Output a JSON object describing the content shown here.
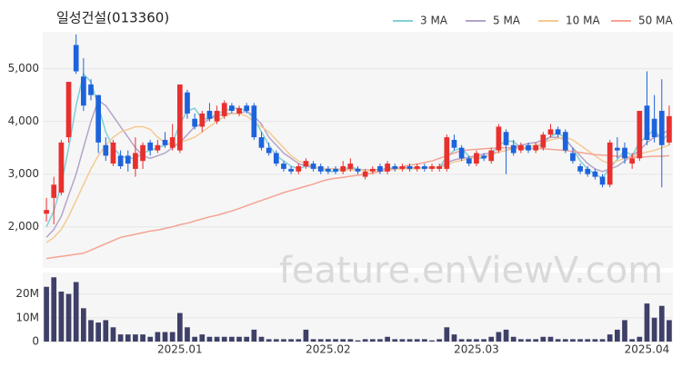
{
  "chart_data": {
    "type": "candlestick",
    "title": "일성건설(013360)",
    "watermark": "feature.enViewV.com",
    "up_color": "#e8302e",
    "down_color": "#1d63dc",
    "categories": [
      null,
      null,
      null,
      null,
      null,
      null,
      null,
      null,
      null,
      null,
      null,
      null,
      null,
      null,
      null,
      null,
      null,
      null,
      "2025.01",
      null,
      null,
      null,
      null,
      null,
      null,
      null,
      null,
      null,
      null,
      null,
      null,
      null,
      null,
      null,
      null,
      null,
      null,
      null,
      "2025.02",
      null,
      null,
      null,
      null,
      null,
      null,
      null,
      null,
      null,
      null,
      null,
      null,
      null,
      null,
      null,
      null,
      null,
      null,
      null,
      "2025.03",
      null,
      null,
      null,
      null,
      null,
      null,
      null,
      null,
      null,
      null,
      null,
      null,
      null,
      null,
      null,
      null,
      null,
      null,
      null,
      null,
      null,
      null,
      "2025.04",
      null,
      null,
      null
    ],
    "open": [
      2250,
      2550,
      2650,
      3700,
      5450,
      4850,
      4700,
      4500,
      3550,
      3200,
      3350,
      3350,
      3100,
      3250,
      3600,
      3450,
      3650,
      3500,
      3450,
      4550,
      4050,
      3900,
      4200,
      4000,
      4100,
      4300,
      4150,
      4300,
      4300,
      3700,
      3500,
      3400,
      3200,
      3100,
      3050,
      3150,
      3200,
      3150,
      3100,
      3100,
      3050,
      3100,
      3100,
      2950,
      3050,
      3150,
      3050,
      3150,
      3100,
      3150,
      3100,
      3150,
      3100,
      3100,
      3100,
      3650,
      3500,
      3300,
      3200,
      3350,
      3250,
      3450,
      3800,
      3550,
      3450,
      3550,
      3450,
      3500,
      3750,
      3850,
      3800,
      3400,
      3150,
      3100,
      3050,
      2950,
      2800,
      3500,
      3500,
      3200,
      3300,
      4300,
      4050,
      4200,
      3600
    ],
    "high": [
      2550,
      2950,
      3650,
      4750,
      5650,
      5200,
      4800,
      4500,
      3700,
      3650,
      3450,
      3450,
      3700,
      3600,
      3650,
      3650,
      3800,
      3950,
      4700,
      4600,
      4150,
      4200,
      4350,
      4300,
      4400,
      4350,
      4300,
      4350,
      4350,
      3800,
      3600,
      3450,
      3250,
      3150,
      3200,
      3300,
      3250,
      3200,
      3150,
      3150,
      3250,
      3300,
      3150,
      3100,
      3150,
      3200,
      3250,
      3200,
      3200,
      3200,
      3200,
      3200,
      3200,
      3200,
      3750,
      3750,
      3550,
      3350,
      3450,
      3400,
      3500,
      3950,
      3850,
      3650,
      3600,
      3600,
      3600,
      3800,
      3950,
      3900,
      3850,
      3500,
      3200,
      3150,
      3100,
      3000,
      3650,
      3700,
      3600,
      3400,
      4200,
      4950,
      4500,
      4800,
      4300
    ],
    "low": [
      2100,
      2050,
      2600,
      3600,
      4900,
      4200,
      4400,
      3400,
      3250,
      3150,
      3100,
      3050,
      2950,
      3100,
      3350,
      3400,
      3500,
      3450,
      3400,
      4050,
      3850,
      3800,
      4000,
      3950,
      4050,
      4150,
      4100,
      4150,
      3650,
      3450,
      3350,
      3150,
      3050,
      3000,
      3000,
      3100,
      3050,
      3000,
      3000,
      3000,
      3000,
      3050,
      3000,
      2900,
      3000,
      3000,
      3000,
      3050,
      3050,
      3050,
      3050,
      3050,
      3050,
      3050,
      3050,
      3450,
      3250,
      3150,
      3150,
      3250,
      3200,
      3400,
      3000,
      3350,
      3400,
      3400,
      3400,
      3450,
      3700,
      3700,
      3400,
      3200,
      3000,
      2950,
      2900,
      2750,
      2750,
      3300,
      3200,
      3100,
      3250,
      3550,
      3600,
      2750,
      3550
    ],
    "close": [
      2320,
      2800,
      3600,
      4750,
      4950,
      4300,
      4500,
      3600,
      3350,
      3600,
      3150,
      3200,
      3400,
      3550,
      3450,
      3550,
      3550,
      3700,
      4700,
      4150,
      3900,
      4150,
      4050,
      4200,
      4350,
      4200,
      4250,
      4200,
      3700,
      3500,
      3400,
      3200,
      3100,
      3050,
      3150,
      3250,
      3100,
      3050,
      3050,
      3050,
      3150,
      3200,
      3050,
      3050,
      3100,
      3050,
      3200,
      3100,
      3150,
      3100,
      3150,
      3100,
      3150,
      3150,
      3700,
      3500,
      3300,
      3200,
      3400,
      3300,
      3450,
      3900,
      3550,
      3400,
      3550,
      3450,
      3550,
      3750,
      3850,
      3750,
      3450,
      3250,
      3050,
      3000,
      2950,
      2800,
      3600,
      3450,
      3300,
      3300,
      4200,
      3650,
      3700,
      3550,
      4100
    ],
    "series": [
      {
        "name": "3 MA",
        "color": "#7fd0d6",
        "values": [
          2000,
          2300,
          2800,
          3500,
          4300,
          4900,
          4750,
          4300,
          3800,
          3500,
          3350,
          3300,
          3300,
          3400,
          3450,
          3500,
          3550,
          3600,
          3950,
          4200,
          4250,
          4050,
          4050,
          4150,
          4200,
          4250,
          4250,
          4200,
          4050,
          3800,
          3550,
          3350,
          3250,
          3150,
          3100,
          3150,
          3150,
          3100,
          3050,
          3050,
          3100,
          3130,
          3100,
          3070,
          3070,
          3080,
          3110,
          3120,
          3120,
          3120,
          3120,
          3120,
          3130,
          3130,
          3330,
          3450,
          3500,
          3330,
          3300,
          3300,
          3380,
          3550,
          3630,
          3620,
          3500,
          3470,
          3500,
          3580,
          3720,
          3780,
          3680,
          3480,
          3250,
          3100,
          3000,
          2920,
          3120,
          3280,
          3450,
          3350,
          3600,
          3720,
          3850,
          3630,
          3780
        ]
      },
      {
        "name": "5 MA",
        "color": "#b4a3c9",
        "values": [
          1800,
          1950,
          2200,
          2600,
          3000,
          3500,
          4000,
          4400,
          4300,
          4100,
          3900,
          3700,
          3500,
          3350,
          3300,
          3350,
          3400,
          3500,
          3600,
          3750,
          3900,
          3950,
          4050,
          4100,
          4150,
          4150,
          4150,
          4200,
          4100,
          3950,
          3700,
          3550,
          3400,
          3300,
          3200,
          3150,
          3130,
          3110,
          3100,
          3100,
          3090,
          3090,
          3090,
          3080,
          3080,
          3090,
          3100,
          3110,
          3110,
          3120,
          3120,
          3120,
          3120,
          3130,
          3220,
          3270,
          3300,
          3320,
          3350,
          3380,
          3400,
          3420,
          3450,
          3500,
          3550,
          3580,
          3600,
          3650,
          3700,
          3700,
          3650,
          3500,
          3350,
          3200,
          3100,
          3050,
          3100,
          3150,
          3250,
          3350,
          3450,
          3600,
          3700,
          3750,
          3850
        ]
      },
      {
        "name": "10 MA",
        "color": "#f5ca92",
        "values": [
          1700,
          1800,
          1950,
          2200,
          2500,
          2800,
          3100,
          3350,
          3550,
          3700,
          3800,
          3850,
          3900,
          3900,
          3850,
          3700,
          3600,
          3550,
          3600,
          3650,
          3700,
          3800,
          3900,
          4000,
          4100,
          4150,
          4150,
          4100,
          4000,
          3900,
          3800,
          3650,
          3500,
          3350,
          3250,
          3200,
          3150,
          3100,
          3100,
          3100,
          3080,
          3080,
          3080,
          3070,
          3070,
          3070,
          3080,
          3090,
          3100,
          3100,
          3100,
          3110,
          3120,
          3120,
          3180,
          3230,
          3260,
          3290,
          3320,
          3340,
          3360,
          3420,
          3450,
          3480,
          3500,
          3520,
          3550,
          3600,
          3650,
          3680,
          3700,
          3650,
          3550,
          3450,
          3350,
          3250,
          3200,
          3250,
          3300,
          3320,
          3380,
          3420,
          3450,
          3500,
          3550
        ]
      },
      {
        "name": "50 MA",
        "color": "#f4a392",
        "values": [
          1400,
          1420,
          1440,
          1460,
          1480,
          1500,
          1560,
          1620,
          1680,
          1740,
          1800,
          1830,
          1860,
          1890,
          1920,
          1940,
          1970,
          2000,
          2040,
          2070,
          2110,
          2150,
          2190,
          2220,
          2260,
          2300,
          2350,
          2400,
          2450,
          2500,
          2550,
          2600,
          2650,
          2690,
          2730,
          2770,
          2810,
          2860,
          2900,
          2920,
          2940,
          2960,
          2980,
          3000,
          3020,
          3050,
          3080,
          3110,
          3140,
          3170,
          3190,
          3220,
          3250,
          3300,
          3350,
          3400,
          3450,
          3460,
          3470,
          3480,
          3490,
          3500,
          3500,
          3500,
          3500,
          3490,
          3490,
          3480,
          3470,
          3460,
          3450,
          3430,
          3410,
          3390,
          3370,
          3360,
          3350,
          3340,
          3330,
          3320,
          3320,
          3330,
          3340,
          3340,
          3350
        ]
      }
    ],
    "ylim": [
      1220,
      5700
    ],
    "yticks": [
      {
        "value": 2000,
        "label": "2,000"
      },
      {
        "value": 3000,
        "label": "3,000"
      },
      {
        "value": 4000,
        "label": "4,000"
      },
      {
        "value": 5000,
        "label": "5,000"
      }
    ],
    "volume": {
      "color": "#3f4068",
      "values": [
        23000000,
        27000000,
        21000000,
        20000000,
        25000000,
        14000000,
        9000000,
        8000000,
        9000000,
        6000000,
        3000000,
        3000000,
        3000000,
        3000000,
        2000000,
        4000000,
        4000000,
        4000000,
        12000000,
        6000000,
        2000000,
        3000000,
        2000000,
        2000000,
        2000000,
        2000000,
        2000000,
        2000000,
        5000000,
        2000000,
        1000000,
        1000000,
        1000000,
        1000000,
        1000000,
        5000000,
        1000000,
        1000000,
        1000000,
        1000000,
        1000000,
        1000000,
        500000,
        1000000,
        1000000,
        1000000,
        2000000,
        1000000,
        1000000,
        1000000,
        1000000,
        1000000,
        500000,
        1000000,
        6000000,
        3000000,
        1000000,
        1000000,
        1000000,
        1000000,
        2000000,
        4000000,
        5000000,
        2000000,
        1000000,
        1000000,
        1000000,
        2000000,
        2000000,
        1000000,
        1000000,
        1000000,
        1000000,
        1000000,
        1000000,
        1000000,
        3000000,
        5000000,
        9000000,
        1000000,
        2000000,
        16000000,
        10000000,
        15000000,
        9000000
      ],
      "ylim": [
        0,
        29000000
      ],
      "yticks": [
        0,
        {
          "value": 10000000,
          "label": "10M"
        },
        {
          "value": 20000000,
          "label": "20M"
        }
      ]
    }
  }
}
